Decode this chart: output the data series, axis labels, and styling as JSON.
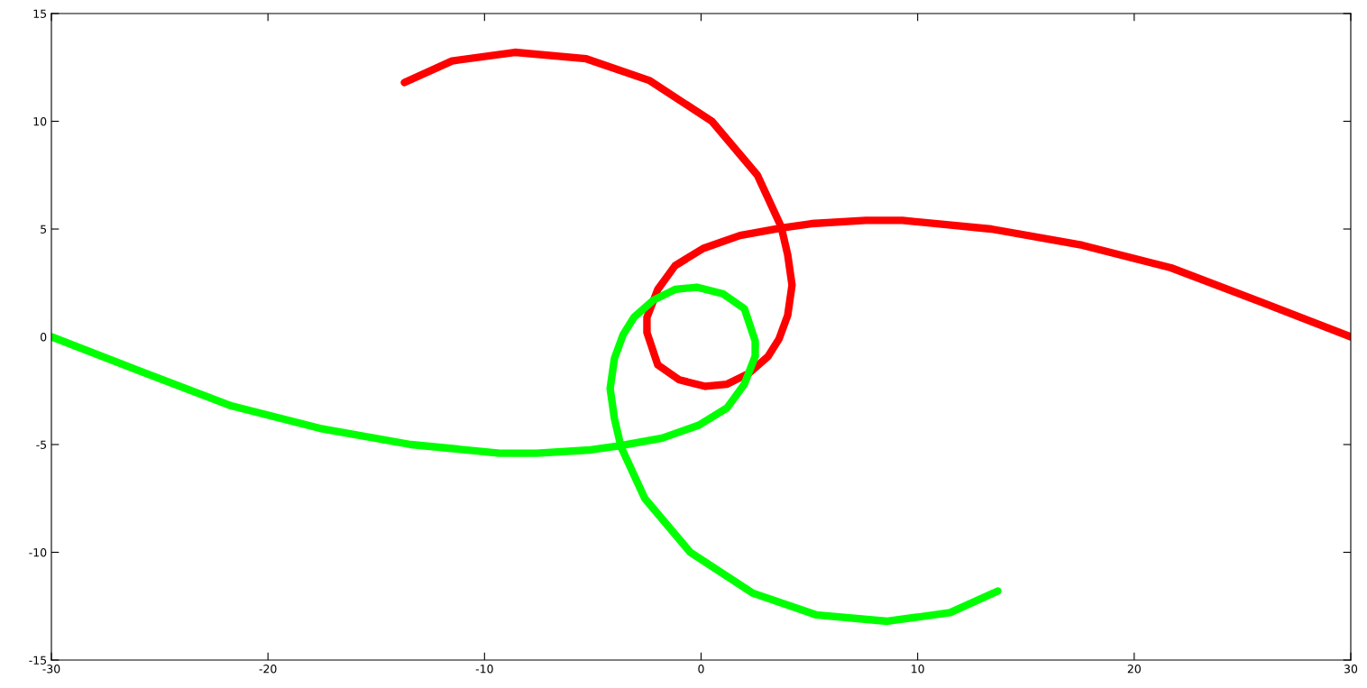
{
  "chart_data": {
    "type": "line",
    "xlim": [
      -30,
      30
    ],
    "ylim": [
      -15,
      15
    ],
    "xticks": [
      -30,
      -20,
      -10,
      0,
      10,
      20,
      30
    ],
    "yticks": [
      -15,
      -10,
      -5,
      0,
      5,
      10,
      15
    ],
    "grid": false,
    "marker": "none",
    "line_style": "solid",
    "series": [
      {
        "color": "#ff0000",
        "x": [
          30,
          25.9,
          21.7,
          17.6,
          13.4,
          9.3,
          7.6,
          5.1,
          3.7,
          1.8,
          0.1,
          -1.2,
          -2,
          -2.5,
          -2.5,
          -2,
          -1,
          0.2,
          1.2,
          2.2,
          3.1,
          3.6,
          4.0,
          4.2,
          4.0,
          3.7,
          2.6,
          0.5,
          -2.4,
          -5.3,
          -8.6,
          -11.5,
          -13.7
        ],
        "values": [
          0,
          1.6,
          3.2,
          4.25,
          5.0,
          5.4,
          5.4,
          5.25,
          5.05,
          4.7,
          4.1,
          3.3,
          2.2,
          0.9,
          0.2,
          -1.3,
          -2.0,
          -2.3,
          -2.2,
          -1.7,
          -0.9,
          -0.1,
          1.0,
          2.4,
          3.8,
          5.1,
          7.5,
          10,
          11.9,
          12.9,
          13.2,
          12.8,
          11.8
        ]
      },
      {
        "color": "#00ff00",
        "x": [
          -30,
          -25.9,
          -21.7,
          -17.6,
          -13.4,
          -9.3,
          -7.6,
          -5.1,
          -3.7,
          -1.8,
          -0.1,
          1.2,
          2,
          2.5,
          2.5,
          2,
          1,
          -0.2,
          -1.2,
          -2.2,
          -3.1,
          -3.6,
          -4.0,
          -4.2,
          -4.0,
          -3.7,
          -2.6,
          -0.5,
          2.4,
          5.3,
          8.6,
          11.5,
          13.7
        ],
        "values": [
          0,
          -1.6,
          -3.2,
          -4.25,
          -5.0,
          -5.4,
          -5.4,
          -5.25,
          -5.05,
          -4.7,
          -4.1,
          -3.3,
          -2.2,
          -0.9,
          -0.2,
          1.3,
          2.0,
          2.3,
          2.2,
          1.7,
          0.9,
          0.1,
          -1.0,
          -2.4,
          -3.8,
          -5.1,
          -7.5,
          -10,
          -11.9,
          -12.9,
          -13.2,
          -12.8,
          -11.8
        ]
      }
    ]
  }
}
